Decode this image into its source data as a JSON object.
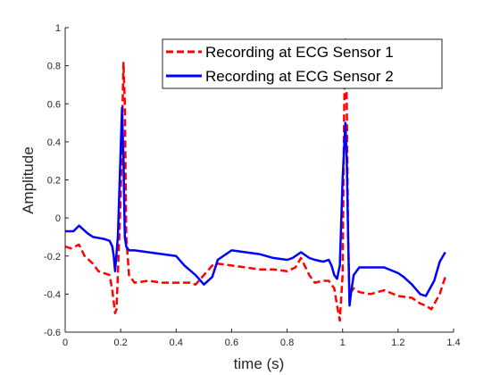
{
  "chart_data": {
    "type": "line",
    "title": "",
    "xlabel": "time (s)",
    "ylabel": "Amplitude",
    "xlim": [
      0,
      1.4
    ],
    "ylim": [
      -0.6,
      1
    ],
    "xticks": [
      0,
      0.2,
      0.4,
      0.6,
      0.8,
      1,
      1.2,
      1.4
    ],
    "xtick_labels": [
      "0",
      "0.2",
      "0.4",
      "0.6",
      "0.8",
      "1",
      "1.2",
      "1.4"
    ],
    "yticks": [
      -0.6,
      -0.4,
      -0.2,
      0,
      0.2,
      0.4,
      0.6,
      0.8,
      1
    ],
    "ytick_labels": [
      "-0.6",
      "-0.4",
      "-0.2",
      "0",
      "0.2",
      "0.4",
      "0.6",
      "0.8",
      "1"
    ],
    "grid": false,
    "legend_position": "top-right",
    "series": [
      {
        "name": "Recording at ECG Sensor 1",
        "color": "#ff0000",
        "style": "dashed",
        "x": [
          0,
          0.02,
          0.05,
          0.07,
          0.1,
          0.12,
          0.14,
          0.16,
          0.17,
          0.18,
          0.185,
          0.19,
          0.2,
          0.21,
          0.215,
          0.22,
          0.23,
          0.25,
          0.3,
          0.35,
          0.4,
          0.45,
          0.47,
          0.5,
          0.53,
          0.55,
          0.6,
          0.65,
          0.7,
          0.75,
          0.8,
          0.83,
          0.85,
          0.88,
          0.9,
          0.93,
          0.95,
          0.97,
          0.98,
          0.99,
          1.0,
          1.005,
          1.01,
          1.015,
          1.02,
          1.025,
          1.03,
          1.04,
          1.06,
          1.1,
          1.15,
          1.2,
          1.25,
          1.28,
          1.3,
          1.32,
          1.35,
          1.37
        ],
        "y": [
          -0.15,
          -0.16,
          -0.14,
          -0.2,
          -0.24,
          -0.28,
          -0.29,
          -0.3,
          -0.38,
          -0.5,
          -0.48,
          -0.3,
          0.1,
          0.82,
          0.6,
          -0.1,
          -0.3,
          -0.34,
          -0.33,
          -0.34,
          -0.34,
          -0.34,
          -0.35,
          -0.3,
          -0.25,
          -0.24,
          -0.25,
          -0.26,
          -0.27,
          -0.27,
          -0.28,
          -0.26,
          -0.21,
          -0.3,
          -0.34,
          -0.33,
          -0.33,
          -0.37,
          -0.46,
          -0.54,
          -0.3,
          0.5,
          0.95,
          0.6,
          -0.1,
          -0.43,
          -0.39,
          -0.37,
          -0.39,
          -0.4,
          -0.38,
          -0.41,
          -0.42,
          -0.45,
          -0.46,
          -0.48,
          -0.4,
          -0.31
        ]
      },
      {
        "name": "Recording at ECG Sensor 2",
        "color": "#0000ff",
        "style": "solid",
        "x": [
          0,
          0.03,
          0.05,
          0.08,
          0.1,
          0.14,
          0.16,
          0.17,
          0.175,
          0.18,
          0.19,
          0.2,
          0.205,
          0.21,
          0.215,
          0.22,
          0.23,
          0.25,
          0.3,
          0.35,
          0.4,
          0.43,
          0.47,
          0.5,
          0.53,
          0.55,
          0.6,
          0.65,
          0.7,
          0.75,
          0.8,
          0.82,
          0.85,
          0.88,
          0.9,
          0.93,
          0.95,
          0.96,
          0.97,
          0.98,
          0.99,
          1.0,
          1.01,
          1.015,
          1.02,
          1.025,
          1.03,
          1.04,
          1.06,
          1.1,
          1.15,
          1.2,
          1.22,
          1.25,
          1.28,
          1.3,
          1.33,
          1.35,
          1.37
        ],
        "y": [
          -0.07,
          -0.07,
          -0.04,
          -0.08,
          -0.1,
          -0.11,
          -0.12,
          -0.15,
          -0.2,
          -0.28,
          -0.1,
          0.35,
          0.58,
          0.3,
          -0.1,
          -0.15,
          -0.17,
          -0.17,
          -0.18,
          -0.19,
          -0.2,
          -0.25,
          -0.3,
          -0.35,
          -0.31,
          -0.22,
          -0.17,
          -0.18,
          -0.19,
          -0.21,
          -0.22,
          -0.21,
          -0.18,
          -0.21,
          -0.22,
          -0.23,
          -0.22,
          -0.25,
          -0.3,
          -0.32,
          -0.25,
          0.2,
          0.5,
          0.3,
          -0.1,
          -0.46,
          -0.4,
          -0.3,
          -0.26,
          -0.26,
          -0.26,
          -0.29,
          -0.31,
          -0.35,
          -0.4,
          -0.41,
          -0.33,
          -0.23,
          -0.18
        ]
      }
    ]
  }
}
